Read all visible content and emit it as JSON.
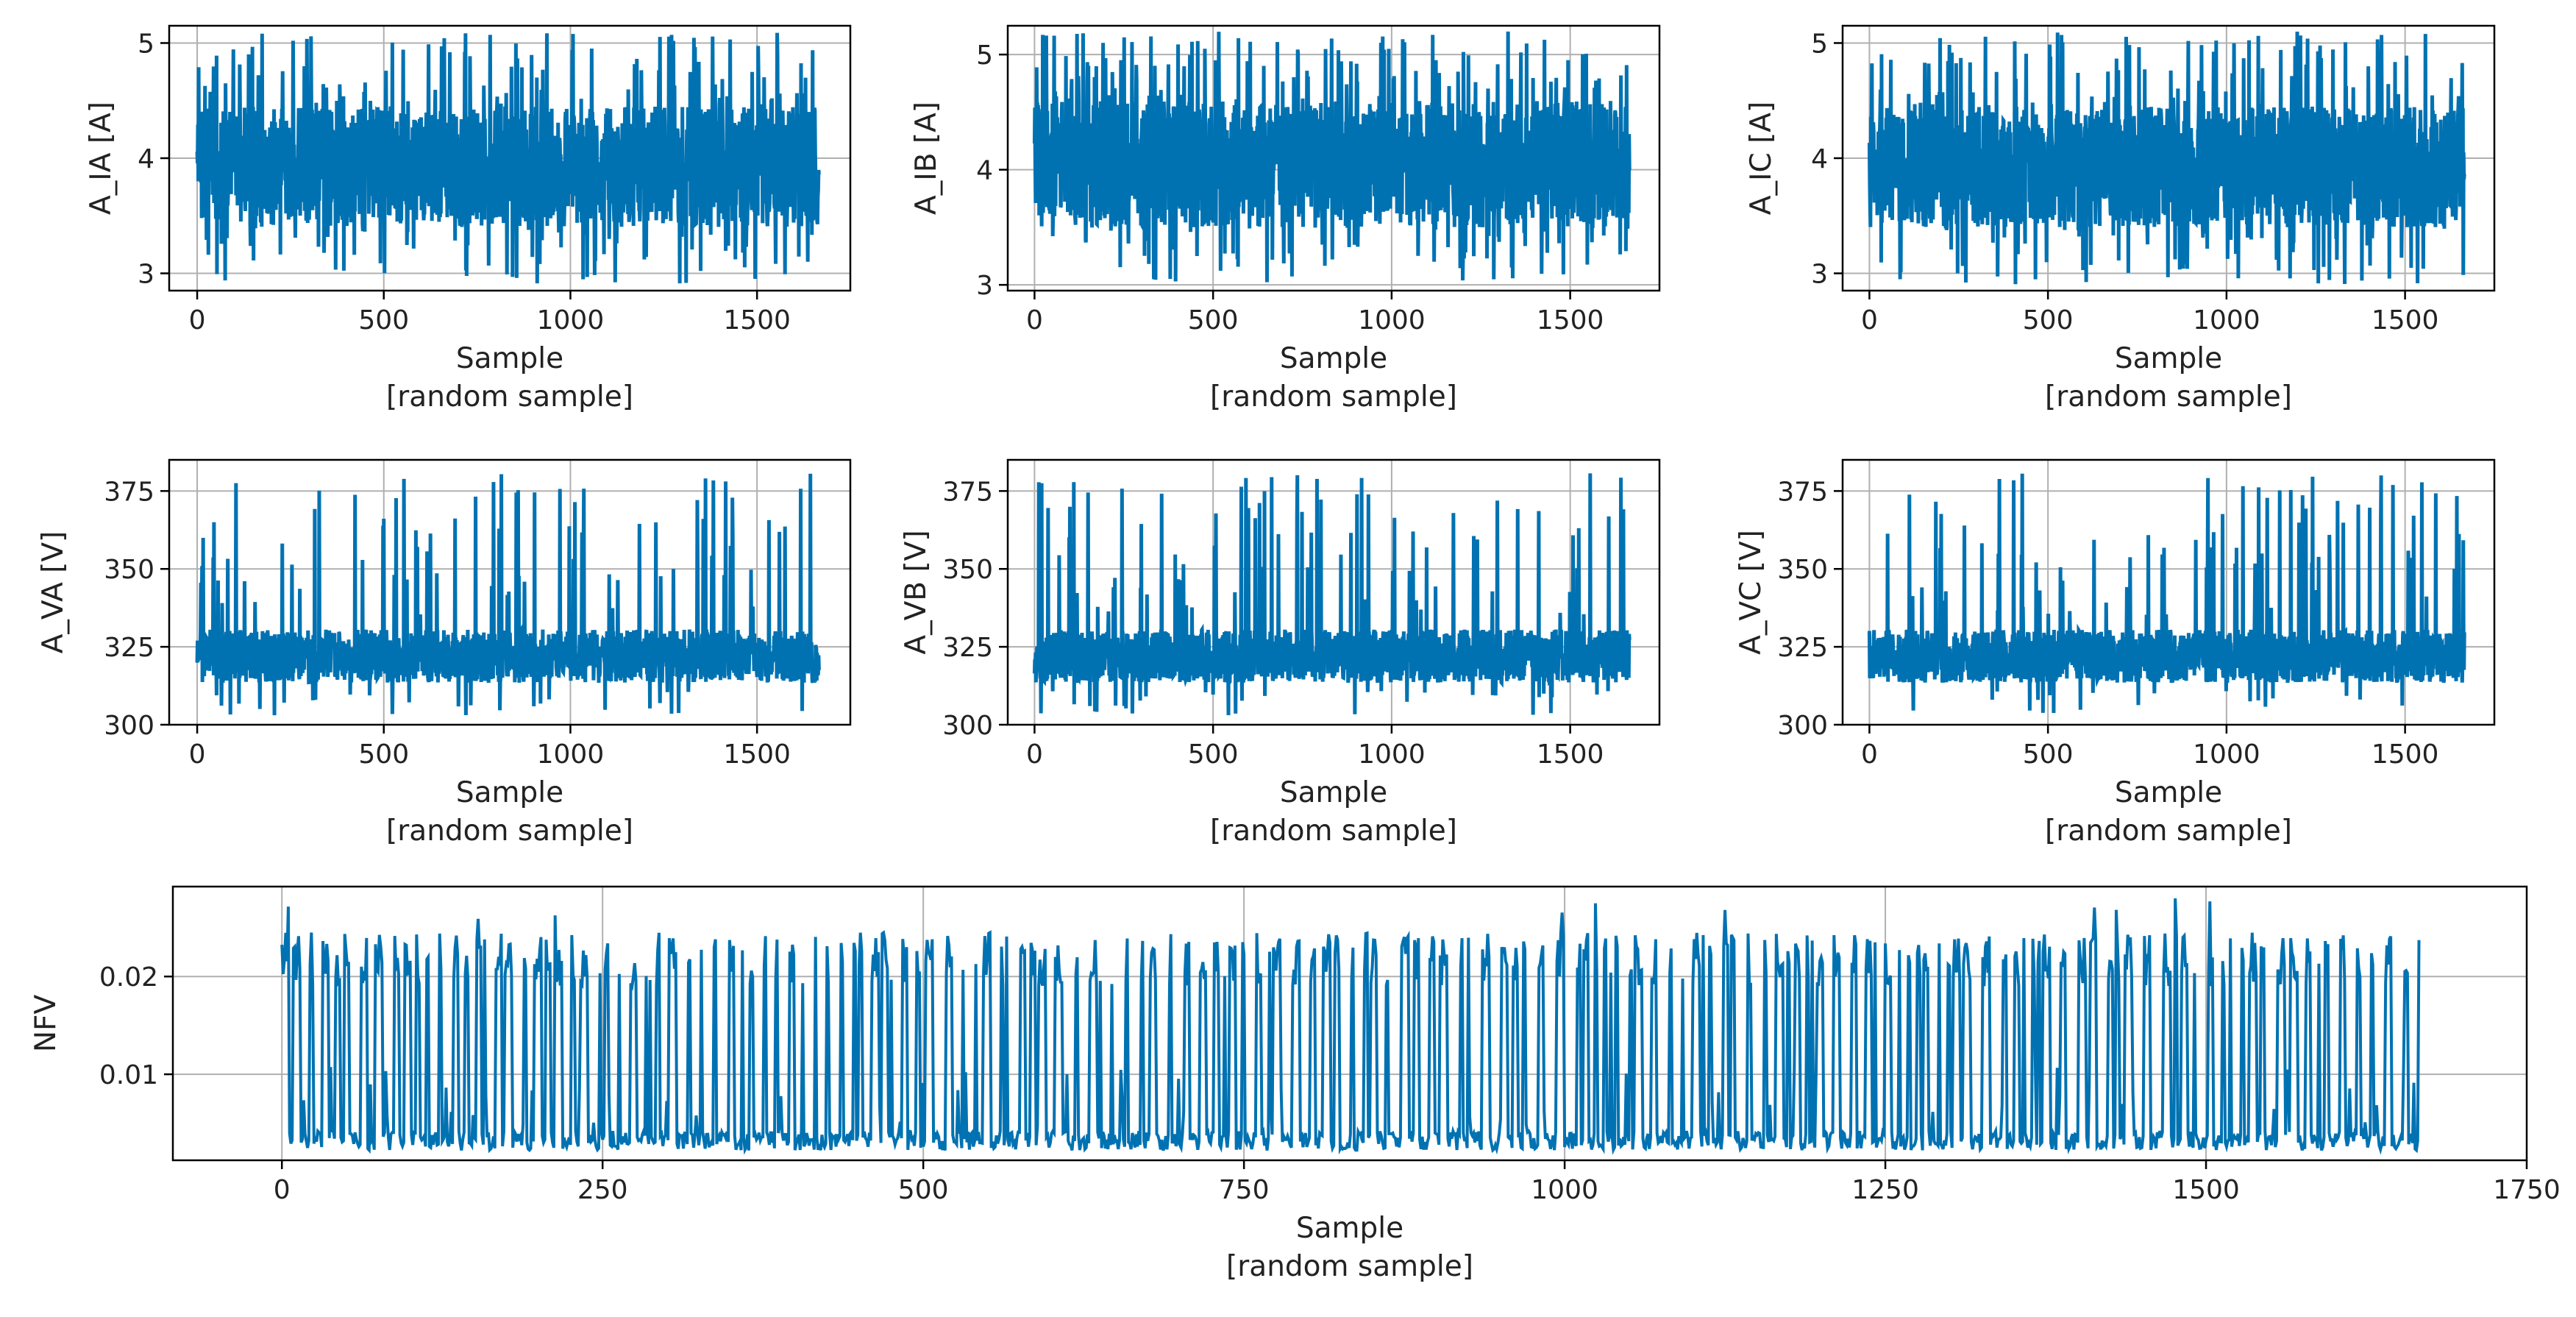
{
  "colors": {
    "line": "#0072B2",
    "grid": "#b0b0b0",
    "frame": "#000000",
    "background": "#ffffff"
  },
  "chart_data": [
    {
      "id": "A_IA",
      "type": "line",
      "xlabel": "Sample",
      "xlabel2": "[random sample]",
      "ylabel": "A_IA [A]",
      "xlim": [
        -75,
        1750
      ],
      "ylim": [
        2.85,
        5.15
      ],
      "xticks": [
        0,
        500,
        1000,
        1500
      ],
      "xtick_labels": [
        "0",
        "500",
        "1000",
        "1500"
      ],
      "yticks": [
        3,
        4,
        5
      ],
      "ytick_labels": [
        "3",
        "4",
        "5"
      ],
      "grid": true,
      "series": [
        {
          "name": "A_IA",
          "n": 1667,
          "mean": 3.9,
          "low": 3.4,
          "high": 4.45,
          "spike_low": 2.9,
          "spike_high": 5.1
        }
      ]
    },
    {
      "id": "A_IB",
      "type": "line",
      "xlabel": "Sample",
      "xlabel2": "[random sample]",
      "ylabel": "A_IB [A]",
      "xlim": [
        -75,
        1750
      ],
      "ylim": [
        2.95,
        5.25
      ],
      "xticks": [
        0,
        500,
        1000,
        1500
      ],
      "xtick_labels": [
        "0",
        "500",
        "1000",
        "1500"
      ],
      "yticks": [
        3,
        4,
        5
      ],
      "ytick_labels": [
        "3",
        "4",
        "5"
      ],
      "grid": true,
      "series": [
        {
          "name": "A_IB",
          "n": 1667,
          "mean": 4.05,
          "low": 3.5,
          "high": 4.6,
          "spike_low": 3.0,
          "spike_high": 5.2
        }
      ]
    },
    {
      "id": "A_IC",
      "type": "line",
      "xlabel": "Sample",
      "xlabel2": "[random sample]",
      "ylabel": "A_IC [A]",
      "xlim": [
        -75,
        1750
      ],
      "ylim": [
        2.85,
        5.15
      ],
      "xticks": [
        0,
        500,
        1000,
        1500
      ],
      "xtick_labels": [
        "0",
        "500",
        "1000",
        "1500"
      ],
      "yticks": [
        3,
        4,
        5
      ],
      "ytick_labels": [
        "3",
        "4",
        "5"
      ],
      "grid": true,
      "series": [
        {
          "name": "A_IC",
          "n": 1667,
          "mean": 3.9,
          "low": 3.4,
          "high": 4.45,
          "spike_low": 2.9,
          "spike_high": 5.1
        }
      ]
    },
    {
      "id": "A_VA",
      "type": "line",
      "xlabel": "Sample",
      "xlabel2": "[random sample]",
      "ylabel": "A_VA [V]",
      "xlim": [
        -75,
        1750
      ],
      "ylim": [
        300,
        385
      ],
      "xticks": [
        0,
        500,
        1000,
        1500
      ],
      "xtick_labels": [
        "0",
        "500",
        "1000",
        "1500"
      ],
      "yticks": [
        300,
        325,
        350,
        375
      ],
      "ytick_labels": [
        "300",
        "325",
        "350",
        "375"
      ],
      "grid": true,
      "series": [
        {
          "name": "A_VA",
          "n": 1667,
          "mean": 322,
          "low": 313,
          "high": 332,
          "spike_low": 303,
          "spike_high": 381
        }
      ]
    },
    {
      "id": "A_VB",
      "type": "line",
      "xlabel": "Sample",
      "xlabel2": "[random sample]",
      "ylabel": "A_VB [V]",
      "xlim": [
        -75,
        1750
      ],
      "ylim": [
        300,
        385
      ],
      "xticks": [
        0,
        500,
        1000,
        1500
      ],
      "xtick_labels": [
        "0",
        "500",
        "1000",
        "1500"
      ],
      "yticks": [
        300,
        325,
        350,
        375
      ],
      "ytick_labels": [
        "300",
        "325",
        "350",
        "375"
      ],
      "grid": true,
      "series": [
        {
          "name": "A_VB",
          "n": 1667,
          "mean": 322,
          "low": 313,
          "high": 332,
          "spike_low": 303,
          "spike_high": 381
        }
      ]
    },
    {
      "id": "A_VC",
      "type": "line",
      "xlabel": "Sample",
      "xlabel2": "[random sample]",
      "ylabel": "A_VC [V]",
      "xlim": [
        -75,
        1750
      ],
      "ylim": [
        300,
        385
      ],
      "xticks": [
        0,
        500,
        1000,
        1500
      ],
      "xtick_labels": [
        "0",
        "500",
        "1000",
        "1500"
      ],
      "yticks": [
        300,
        325,
        350,
        375
      ],
      "ytick_labels": [
        "300",
        "325",
        "350",
        "375"
      ],
      "grid": true,
      "series": [
        {
          "name": "A_VC",
          "n": 1667,
          "mean": 322,
          "low": 313,
          "high": 332,
          "spike_low": 303,
          "spike_high": 381
        }
      ]
    },
    {
      "id": "NFV",
      "type": "line",
      "xlabel": "Sample",
      "xlabel2": "[random sample]",
      "ylabel": "NFV",
      "xlim": [
        -85,
        1750
      ],
      "ylim": [
        0.0012,
        0.0292
      ],
      "xticks": [
        0,
        250,
        500,
        750,
        1000,
        1250,
        1500,
        1750
      ],
      "xtick_labels": [
        "0",
        "250",
        "500",
        "750",
        "1000",
        "1250",
        "1500",
        "1750"
      ],
      "yticks": [
        0.01,
        0.02
      ],
      "ytick_labels": [
        "0.01",
        "0.02"
      ],
      "grid": true,
      "series": [
        {
          "name": "NFV",
          "n": 1667,
          "mean": 0.011,
          "low": 0.0022,
          "high": 0.0245,
          "spike_low": 0.002,
          "spike_high": 0.028
        }
      ]
    }
  ]
}
